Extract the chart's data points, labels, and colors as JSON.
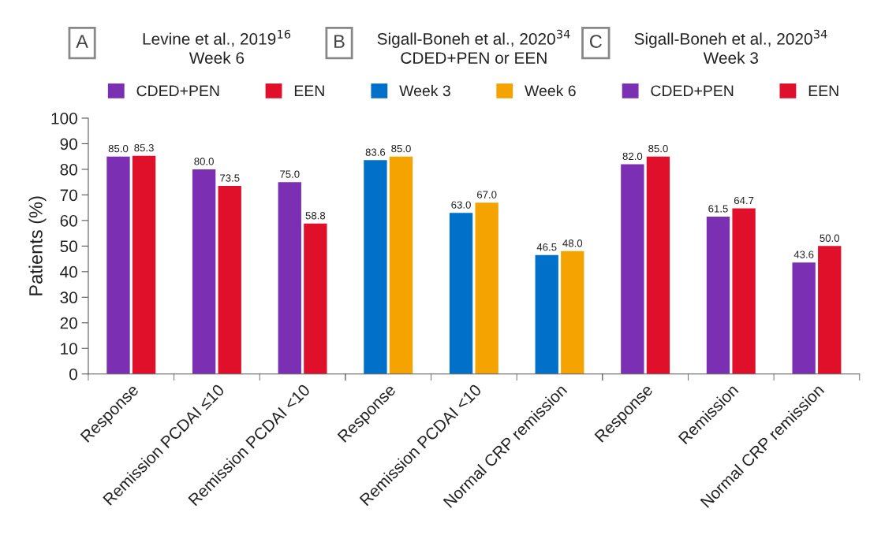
{
  "chart_data": [
    {
      "type": "bar",
      "title": "Levine et al., 2019$^{16}$\nWeek 6",
      "annotations": [
        "A"
      ],
      "categories": [
        "Response",
        "Remission PCDAI ≤10",
        "Remission PCDAI <10"
      ],
      "ylabel": "Patients (%)",
      "ylim": [
        0,
        100
      ],
      "yticks": [
        0,
        10,
        20,
        30,
        40,
        50,
        60,
        70,
        80,
        90,
        100
      ],
      "legend": "top",
      "series": [
        {
          "name": "CDED+PEN",
          "color": "#7b2fb3",
          "values": [
            85.0,
            80.0,
            75.0
          ],
          "value_labels": [
            "85.0",
            "80.0",
            "75.0"
          ]
        },
        {
          "name": "EEN",
          "color": "#e0102a",
          "values": [
            85.3,
            73.5,
            58.8
          ],
          "value_labels": [
            "85.3",
            "73.5",
            "58.8"
          ]
        }
      ]
    },
    {
      "type": "bar",
      "title": "Sigall-Boneh et al., 2020$^{34}$\nCDED+PEN or EEN",
      "annotations": [
        "B"
      ],
      "categories": [
        "Response",
        "Remission PCDAI <10",
        "Normal CRP remission"
      ],
      "ylim": [
        0,
        100
      ],
      "yticks": [
        0,
        10,
        20,
        30,
        40,
        50,
        60,
        70,
        80,
        90,
        100
      ],
      "tick_labels": "x",
      "legend": "top",
      "series": [
        {
          "name": "Week 3",
          "color": "#0070c8",
          "values": [
            83.6,
            63.0,
            46.5
          ],
          "value_labels": [
            "83.6",
            "63.0",
            "46.5"
          ]
        },
        {
          "name": "Week 6",
          "color": "#f5a300",
          "values": [
            85.0,
            67.0,
            48.0
          ],
          "value_labels": [
            "85.0",
            "67.0",
            "48.0"
          ]
        }
      ]
    },
    {
      "type": "bar",
      "title": "Sigall-Boneh et al., 2020$^{34}$\nWeek 3",
      "annotations": [
        "C"
      ],
      "categories": [
        "Response",
        "Remission",
        "Normal CRP remission"
      ],
      "ylim": [
        0,
        100
      ],
      "yticks": [
        0,
        10,
        20,
        30,
        40,
        50,
        60,
        70,
        80,
        90,
        100
      ],
      "tick_labels": "x",
      "legend": "top",
      "series": [
        {
          "name": "CDED+PEN",
          "color": "#7b2fb3",
          "values": [
            82.0,
            61.5,
            43.6
          ],
          "value_labels": [
            "82.0",
            "61.5",
            "43.6"
          ]
        },
        {
          "name": "EEN",
          "color": "#e0102a",
          "values": [
            85.0,
            64.7,
            50.0
          ],
          "value_labels": [
            "85.0",
            "64.7",
            "50.0"
          ]
        }
      ]
    }
  ]
}
